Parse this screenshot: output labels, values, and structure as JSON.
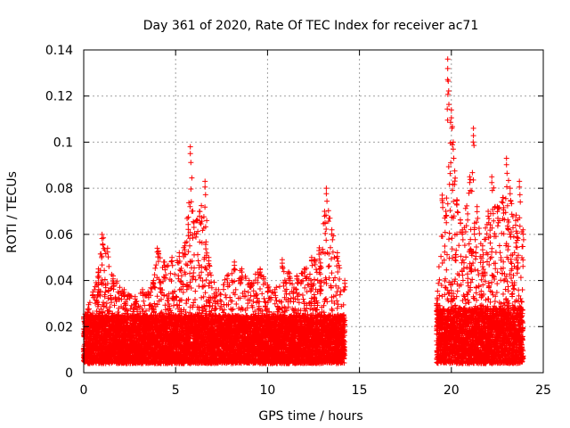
{
  "chart_data": {
    "type": "scatter",
    "title": "Day 361 of 2020, Rate Of TEC Index for receiver ac71",
    "xlabel": "GPS time / hours",
    "ylabel": "ROTI / TECUs",
    "xlim": [
      0,
      25
    ],
    "ylim": [
      0,
      0.14
    ],
    "x_ticks": [
      0,
      5,
      10,
      15,
      20,
      25
    ],
    "x_tick_labels": [
      "0",
      "5",
      "10",
      "15",
      "20",
      "25"
    ],
    "y_ticks": [
      0,
      0.02,
      0.04,
      0.06,
      0.08,
      0.1,
      0.12,
      0.14
    ],
    "y_tick_labels": [
      "0",
      "0.02",
      "0.04",
      "0.06",
      "0.08",
      "0.1",
      "0.12",
      "0.14"
    ],
    "grid": true,
    "legend": "none",
    "marker": "plus",
    "color": "#ff0000",
    "background": "#ffffff",
    "grid_color": "#a0a0a0",
    "data_gap": {
      "from": 14.2,
      "to": 19.2
    },
    "segments": [
      {
        "x_range": [
          0,
          14.2
        ],
        "typical_range": [
          0.004,
          0.025
        ],
        "upper_envelope": [
          [
            0,
            0.024
          ],
          [
            0.5,
            0.035
          ],
          [
            0.8,
            0.045
          ],
          [
            1.0,
            0.06
          ],
          [
            1.3,
            0.054
          ],
          [
            1.6,
            0.042
          ],
          [
            2.2,
            0.036
          ],
          [
            2.8,
            0.033
          ],
          [
            3.2,
            0.036
          ],
          [
            3.5,
            0.035
          ],
          [
            3.8,
            0.04
          ],
          [
            4.0,
            0.054
          ],
          [
            4.4,
            0.048
          ],
          [
            4.8,
            0.05
          ],
          [
            5.2,
            0.052
          ],
          [
            5.5,
            0.055
          ],
          [
            5.8,
            0.098
          ],
          [
            6.0,
            0.065
          ],
          [
            6.3,
            0.07
          ],
          [
            6.6,
            0.083
          ],
          [
            6.8,
            0.05
          ],
          [
            7.2,
            0.036
          ],
          [
            7.8,
            0.042
          ],
          [
            8.2,
            0.048
          ],
          [
            8.6,
            0.045
          ],
          [
            9.0,
            0.04
          ],
          [
            9.6,
            0.045
          ],
          [
            10.0,
            0.038
          ],
          [
            10.4,
            0.036
          ],
          [
            10.8,
            0.049
          ],
          [
            11.2,
            0.043
          ],
          [
            11.6,
            0.042
          ],
          [
            12.0,
            0.045
          ],
          [
            12.4,
            0.05
          ],
          [
            12.8,
            0.053
          ],
          [
            13.1,
            0.07
          ],
          [
            13.2,
            0.08
          ],
          [
            13.5,
            0.062
          ],
          [
            13.8,
            0.052
          ],
          [
            14.2,
            0.04
          ]
        ]
      },
      {
        "x_range": [
          19.2,
          23.9
        ],
        "typical_range": [
          0.004,
          0.028
        ],
        "upper_envelope": [
          [
            19.2,
            0.03
          ],
          [
            19.5,
            0.077
          ],
          [
            19.7,
            0.07
          ],
          [
            19.8,
            0.136
          ],
          [
            20.0,
            0.114
          ],
          [
            20.1,
            0.1
          ],
          [
            20.3,
            0.075
          ],
          [
            20.6,
            0.062
          ],
          [
            21.0,
            0.085
          ],
          [
            21.2,
            0.106
          ],
          [
            21.4,
            0.072
          ],
          [
            21.7,
            0.055
          ],
          [
            22.0,
            0.07
          ],
          [
            22.2,
            0.085
          ],
          [
            22.5,
            0.072
          ],
          [
            22.8,
            0.076
          ],
          [
            23.0,
            0.093
          ],
          [
            23.2,
            0.08
          ],
          [
            23.5,
            0.066
          ],
          [
            23.7,
            0.083
          ],
          [
            23.9,
            0.062
          ]
        ]
      }
    ]
  }
}
